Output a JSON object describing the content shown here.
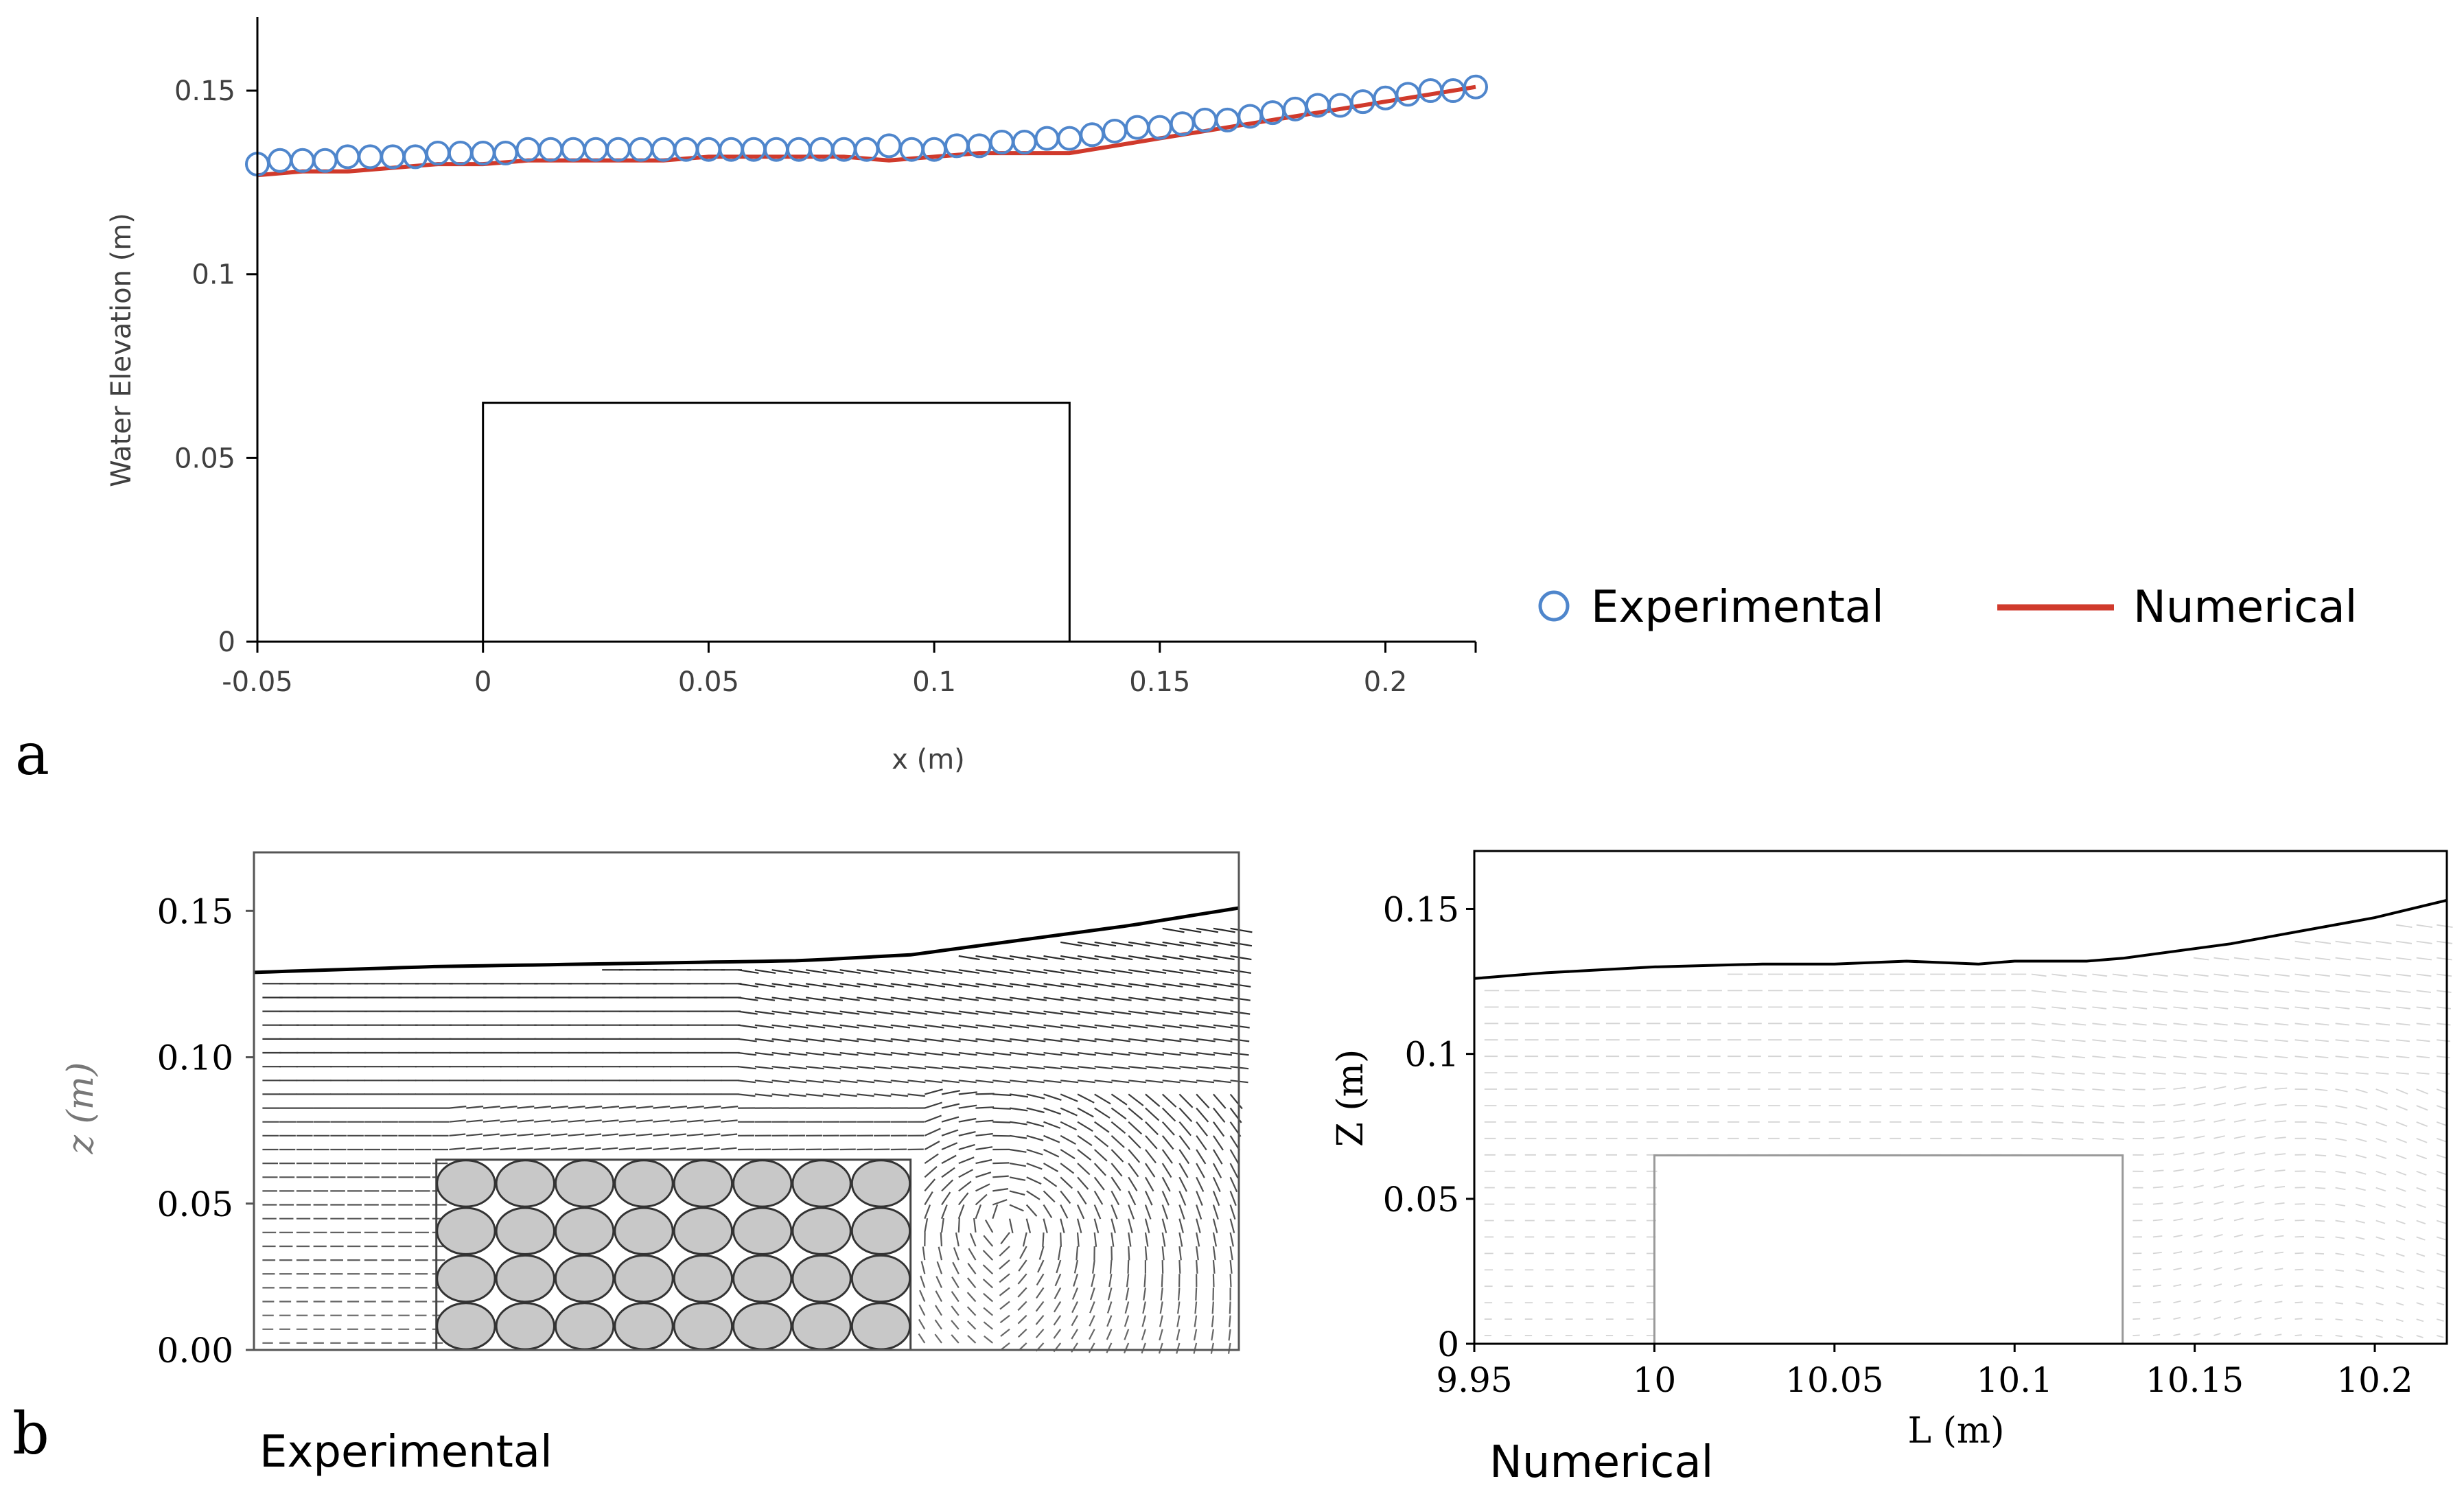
{
  "panel_labels": {
    "a": "a",
    "b": "b"
  },
  "captions": {
    "experimental": "Experimental",
    "numerical": "Numerical"
  },
  "chart_data": [
    {
      "id": "a",
      "type": "line",
      "title": "",
      "xlabel": "x (m)",
      "ylabel": "Water Elevation (m)",
      "xlim": [
        -0.05,
        0.22
      ],
      "ylim": [
        0,
        0.17
      ],
      "xticks": [
        -0.05,
        0,
        0.05,
        0.1,
        0.15,
        0.2
      ],
      "xtick_labels": [
        "-0.05",
        "0",
        "0.05",
        "0.1",
        "0.15",
        "0.2"
      ],
      "yticks": [
        0,
        0.05,
        0.1,
        0.15
      ],
      "ytick_labels": [
        "0",
        "0.05",
        "0.1",
        "0.15"
      ],
      "obstacle": {
        "x0": 0,
        "x1": 0.13,
        "top": 0.065
      },
      "legend": {
        "position": "right",
        "entries": [
          "Experimental",
          "Numerical"
        ]
      },
      "series": [
        {
          "name": "Experimental",
          "style": "circles",
          "color": "#4f86cc",
          "x": [
            -0.05,
            -0.045,
            -0.04,
            -0.035,
            -0.03,
            -0.025,
            -0.02,
            -0.015,
            -0.01,
            -0.005,
            0,
            0.005,
            0.01,
            0.015,
            0.02,
            0.025,
            0.03,
            0.035,
            0.04,
            0.045,
            0.05,
            0.055,
            0.06,
            0.065,
            0.07,
            0.075,
            0.08,
            0.085,
            0.09,
            0.095,
            0.1,
            0.105,
            0.11,
            0.115,
            0.12,
            0.125,
            0.13,
            0.135,
            0.14,
            0.145,
            0.15,
            0.155,
            0.16,
            0.165,
            0.17,
            0.175,
            0.18,
            0.185,
            0.19,
            0.195,
            0.2,
            0.205,
            0.21,
            0.215,
            0.22
          ],
          "values": [
            0.13,
            0.131,
            0.131,
            0.131,
            0.132,
            0.132,
            0.132,
            0.132,
            0.133,
            0.133,
            0.133,
            0.133,
            0.134,
            0.134,
            0.134,
            0.134,
            0.134,
            0.134,
            0.134,
            0.134,
            0.134,
            0.134,
            0.134,
            0.134,
            0.134,
            0.134,
            0.134,
            0.134,
            0.135,
            0.134,
            0.134,
            0.135,
            0.135,
            0.136,
            0.136,
            0.137,
            0.137,
            0.138,
            0.139,
            0.14,
            0.14,
            0.141,
            0.142,
            0.142,
            0.143,
            0.144,
            0.145,
            0.146,
            0.146,
            0.147,
            0.148,
            0.149,
            0.15,
            0.15,
            0.151
          ]
        },
        {
          "name": "Numerical",
          "style": "line",
          "color": "#d03a2c",
          "x": [
            -0.05,
            -0.04,
            -0.03,
            -0.02,
            -0.01,
            0,
            0.01,
            0.02,
            0.03,
            0.04,
            0.05,
            0.06,
            0.07,
            0.08,
            0.09,
            0.1,
            0.11,
            0.12,
            0.13,
            0.14,
            0.15,
            0.16,
            0.17,
            0.18,
            0.19,
            0.2,
            0.21,
            0.22
          ],
          "values": [
            0.127,
            0.128,
            0.128,
            0.129,
            0.13,
            0.13,
            0.131,
            0.131,
            0.131,
            0.131,
            0.132,
            0.132,
            0.132,
            0.132,
            0.131,
            0.132,
            0.133,
            0.133,
            0.133,
            0.135,
            0.137,
            0.139,
            0.141,
            0.143,
            0.145,
            0.147,
            0.149,
            0.151
          ]
        }
      ]
    },
    {
      "id": "b-experimental",
      "type": "line",
      "subtype": "vector-field",
      "title": "Experimental",
      "xlabel": "",
      "ylabel": "z (m)",
      "xlim": [
        -0.05,
        0.22
      ],
      "ylim": [
        0,
        0.17
      ],
      "yticks": [
        0,
        0.05,
        0.1,
        0.15
      ],
      "ytick_labels": [
        "0.00",
        "0.05",
        "0.10",
        "0.15"
      ],
      "surface": {
        "x": [
          -0.05,
          0,
          0.05,
          0.1,
          0.13,
          0.16,
          0.19,
          0.22
        ],
        "values": [
          0.129,
          0.131,
          0.132,
          0.133,
          0.135,
          0.14,
          0.145,
          0.151
        ]
      },
      "obstacle": {
        "x0": 0,
        "x1": 0.13,
        "top": 0.065,
        "rows": 4,
        "cols": 8
      }
    },
    {
      "id": "b-numerical",
      "type": "line",
      "subtype": "vector-field",
      "title": "Numerical",
      "xlabel": "L (m)",
      "ylabel": "Z (m)",
      "xlim": [
        9.95,
        10.22
      ],
      "ylim": [
        0,
        0.17
      ],
      "xticks": [
        9.95,
        10,
        10.05,
        10.1,
        10.15,
        10.2
      ],
      "xtick_labels": [
        "9.95",
        "10",
        "10.05",
        "10.1",
        "10.15",
        "10.2"
      ],
      "yticks": [
        0,
        0.05,
        0.1,
        0.15
      ],
      "ytick_labels": [
        "0",
        "0.05",
        "0.1",
        "0.15"
      ],
      "surface": {
        "x": [
          9.95,
          9.97,
          10,
          10.03,
          10.05,
          10.07,
          10.09,
          10.1,
          10.12,
          10.13,
          10.16,
          10.2,
          10.22
        ],
        "values": [
          0.126,
          0.128,
          0.13,
          0.131,
          0.131,
          0.132,
          0.131,
          0.132,
          0.132,
          0.133,
          0.138,
          0.147,
          0.153
        ]
      },
      "obstacle": {
        "x0": 10,
        "x1": 10.13,
        "top": 0.065
      }
    }
  ]
}
